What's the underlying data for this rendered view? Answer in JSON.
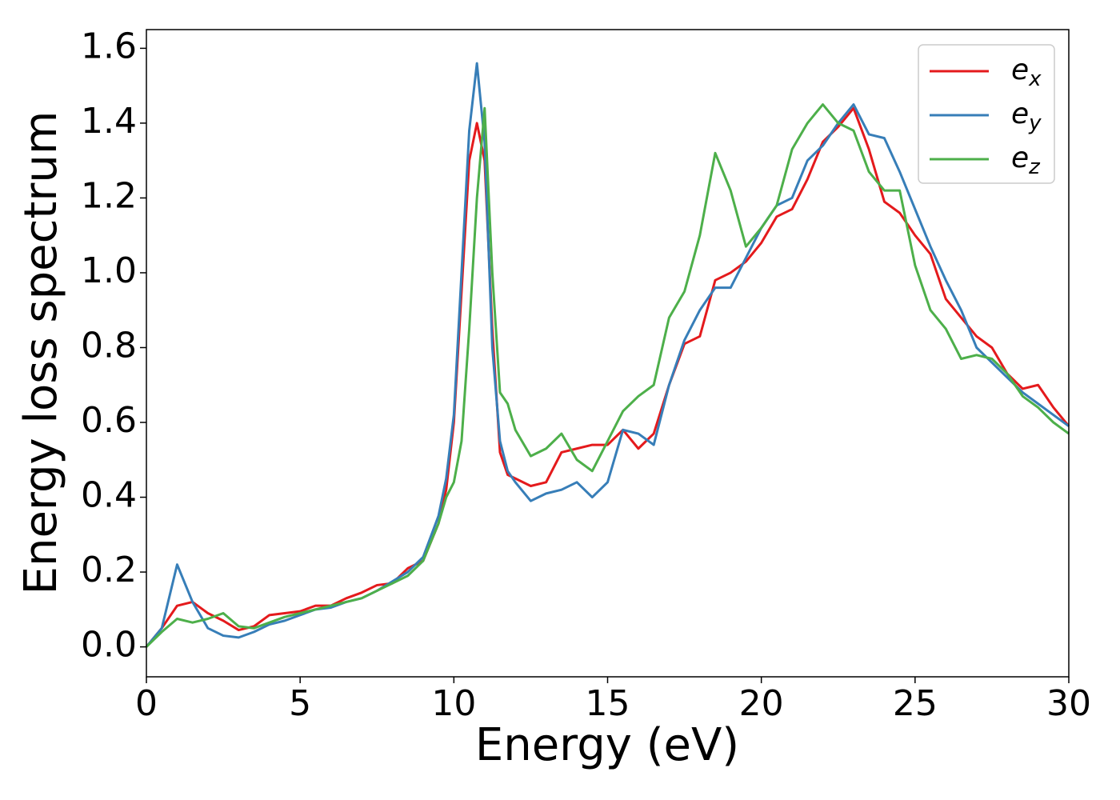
{
  "chart_data": {
    "type": "line",
    "xlabel": "Energy (eV)",
    "ylabel": "Energy loss spectrum",
    "xlim": [
      0,
      30
    ],
    "ylim": [
      -0.08,
      1.65
    ],
    "xticks": [
      0,
      5,
      10,
      15,
      20,
      25,
      30
    ],
    "yticks": [
      {
        "value": 0,
        "label": "0.0"
      },
      0.2,
      0.4,
      0.6,
      0.8,
      {
        "value": 1,
        "label": "1.0"
      },
      1.2,
      1.4,
      1.6
    ],
    "legend": "upper right",
    "x": [
      0,
      0.5,
      1,
      1.5,
      2,
      2.5,
      3,
      3.5,
      4,
      4.5,
      5,
      5.5,
      6,
      6.5,
      7,
      7.5,
      8,
      8.5,
      9,
      9.5,
      9.75,
      10,
      10.25,
      10.5,
      10.75,
      11,
      11.25,
      11.5,
      11.75,
      12,
      12.5,
      13,
      13.5,
      14,
      14.5,
      15,
      15.5,
      16,
      16.5,
      17,
      17.5,
      18,
      18.5,
      19,
      19.5,
      20,
      20.5,
      21,
      21.5,
      22,
      22.5,
      23,
      23.5,
      24,
      24.5,
      25,
      25.5,
      26,
      26.5,
      27,
      27.5,
      28,
      28.5,
      29,
      29.5,
      30
    ],
    "series": [
      {
        "name": "ex",
        "color": "#e41a1c",
        "values": [
          0,
          0.05,
          0.11,
          0.12,
          0.09,
          0.07,
          0.045,
          0.055,
          0.085,
          0.09,
          0.095,
          0.11,
          0.11,
          0.13,
          0.145,
          0.165,
          0.17,
          0.21,
          0.23,
          0.33,
          0.42,
          0.6,
          0.95,
          1.3,
          1.4,
          1.3,
          0.85,
          0.52,
          0.46,
          0.45,
          0.43,
          0.44,
          0.52,
          0.53,
          0.54,
          0.54,
          0.58,
          0.53,
          0.57,
          0.7,
          0.81,
          0.83,
          0.98,
          1.0,
          1.03,
          1.08,
          1.15,
          1.17,
          1.25,
          1.35,
          1.39,
          1.44,
          1.33,
          1.19,
          1.16,
          1.1,
          1.05,
          0.93,
          0.88,
          0.83,
          0.8,
          0.73,
          0.69,
          0.7,
          0.64,
          0.59
        ]
      },
      {
        "name": "ey",
        "color": "#377eb8",
        "values": [
          0,
          0.05,
          0.22,
          0.12,
          0.05,
          0.03,
          0.025,
          0.04,
          0.06,
          0.07,
          0.085,
          0.1,
          0.105,
          0.12,
          0.13,
          0.15,
          0.175,
          0.2,
          0.24,
          0.35,
          0.45,
          0.62,
          1.0,
          1.38,
          1.56,
          1.35,
          0.8,
          0.55,
          0.47,
          0.44,
          0.39,
          0.41,
          0.42,
          0.44,
          0.4,
          0.44,
          0.58,
          0.57,
          0.54,
          0.7,
          0.82,
          0.9,
          0.96,
          0.96,
          1.04,
          1.12,
          1.18,
          1.2,
          1.3,
          1.34,
          1.4,
          1.45,
          1.37,
          1.36,
          1.27,
          1.17,
          1.07,
          0.98,
          0.9,
          0.8,
          0.76,
          0.72,
          0.68,
          0.65,
          0.62,
          0.59
        ]
      },
      {
        "name": "ez",
        "color": "#4daf4a",
        "values": [
          0,
          0.04,
          0.075,
          0.065,
          0.075,
          0.09,
          0.055,
          0.05,
          0.065,
          0.08,
          0.09,
          0.1,
          0.11,
          0.12,
          0.13,
          0.15,
          0.17,
          0.19,
          0.23,
          0.33,
          0.4,
          0.44,
          0.55,
          0.85,
          1.2,
          1.44,
          1.0,
          0.68,
          0.65,
          0.58,
          0.51,
          0.53,
          0.57,
          0.5,
          0.47,
          0.55,
          0.63,
          0.67,
          0.7,
          0.88,
          0.95,
          1.1,
          1.32,
          1.22,
          1.07,
          1.12,
          1.18,
          1.33,
          1.4,
          1.45,
          1.4,
          1.38,
          1.27,
          1.22,
          1.22,
          1.02,
          0.9,
          0.85,
          0.77,
          0.78,
          0.77,
          0.73,
          0.67,
          0.64,
          0.6,
          0.57
        ]
      }
    ]
  }
}
